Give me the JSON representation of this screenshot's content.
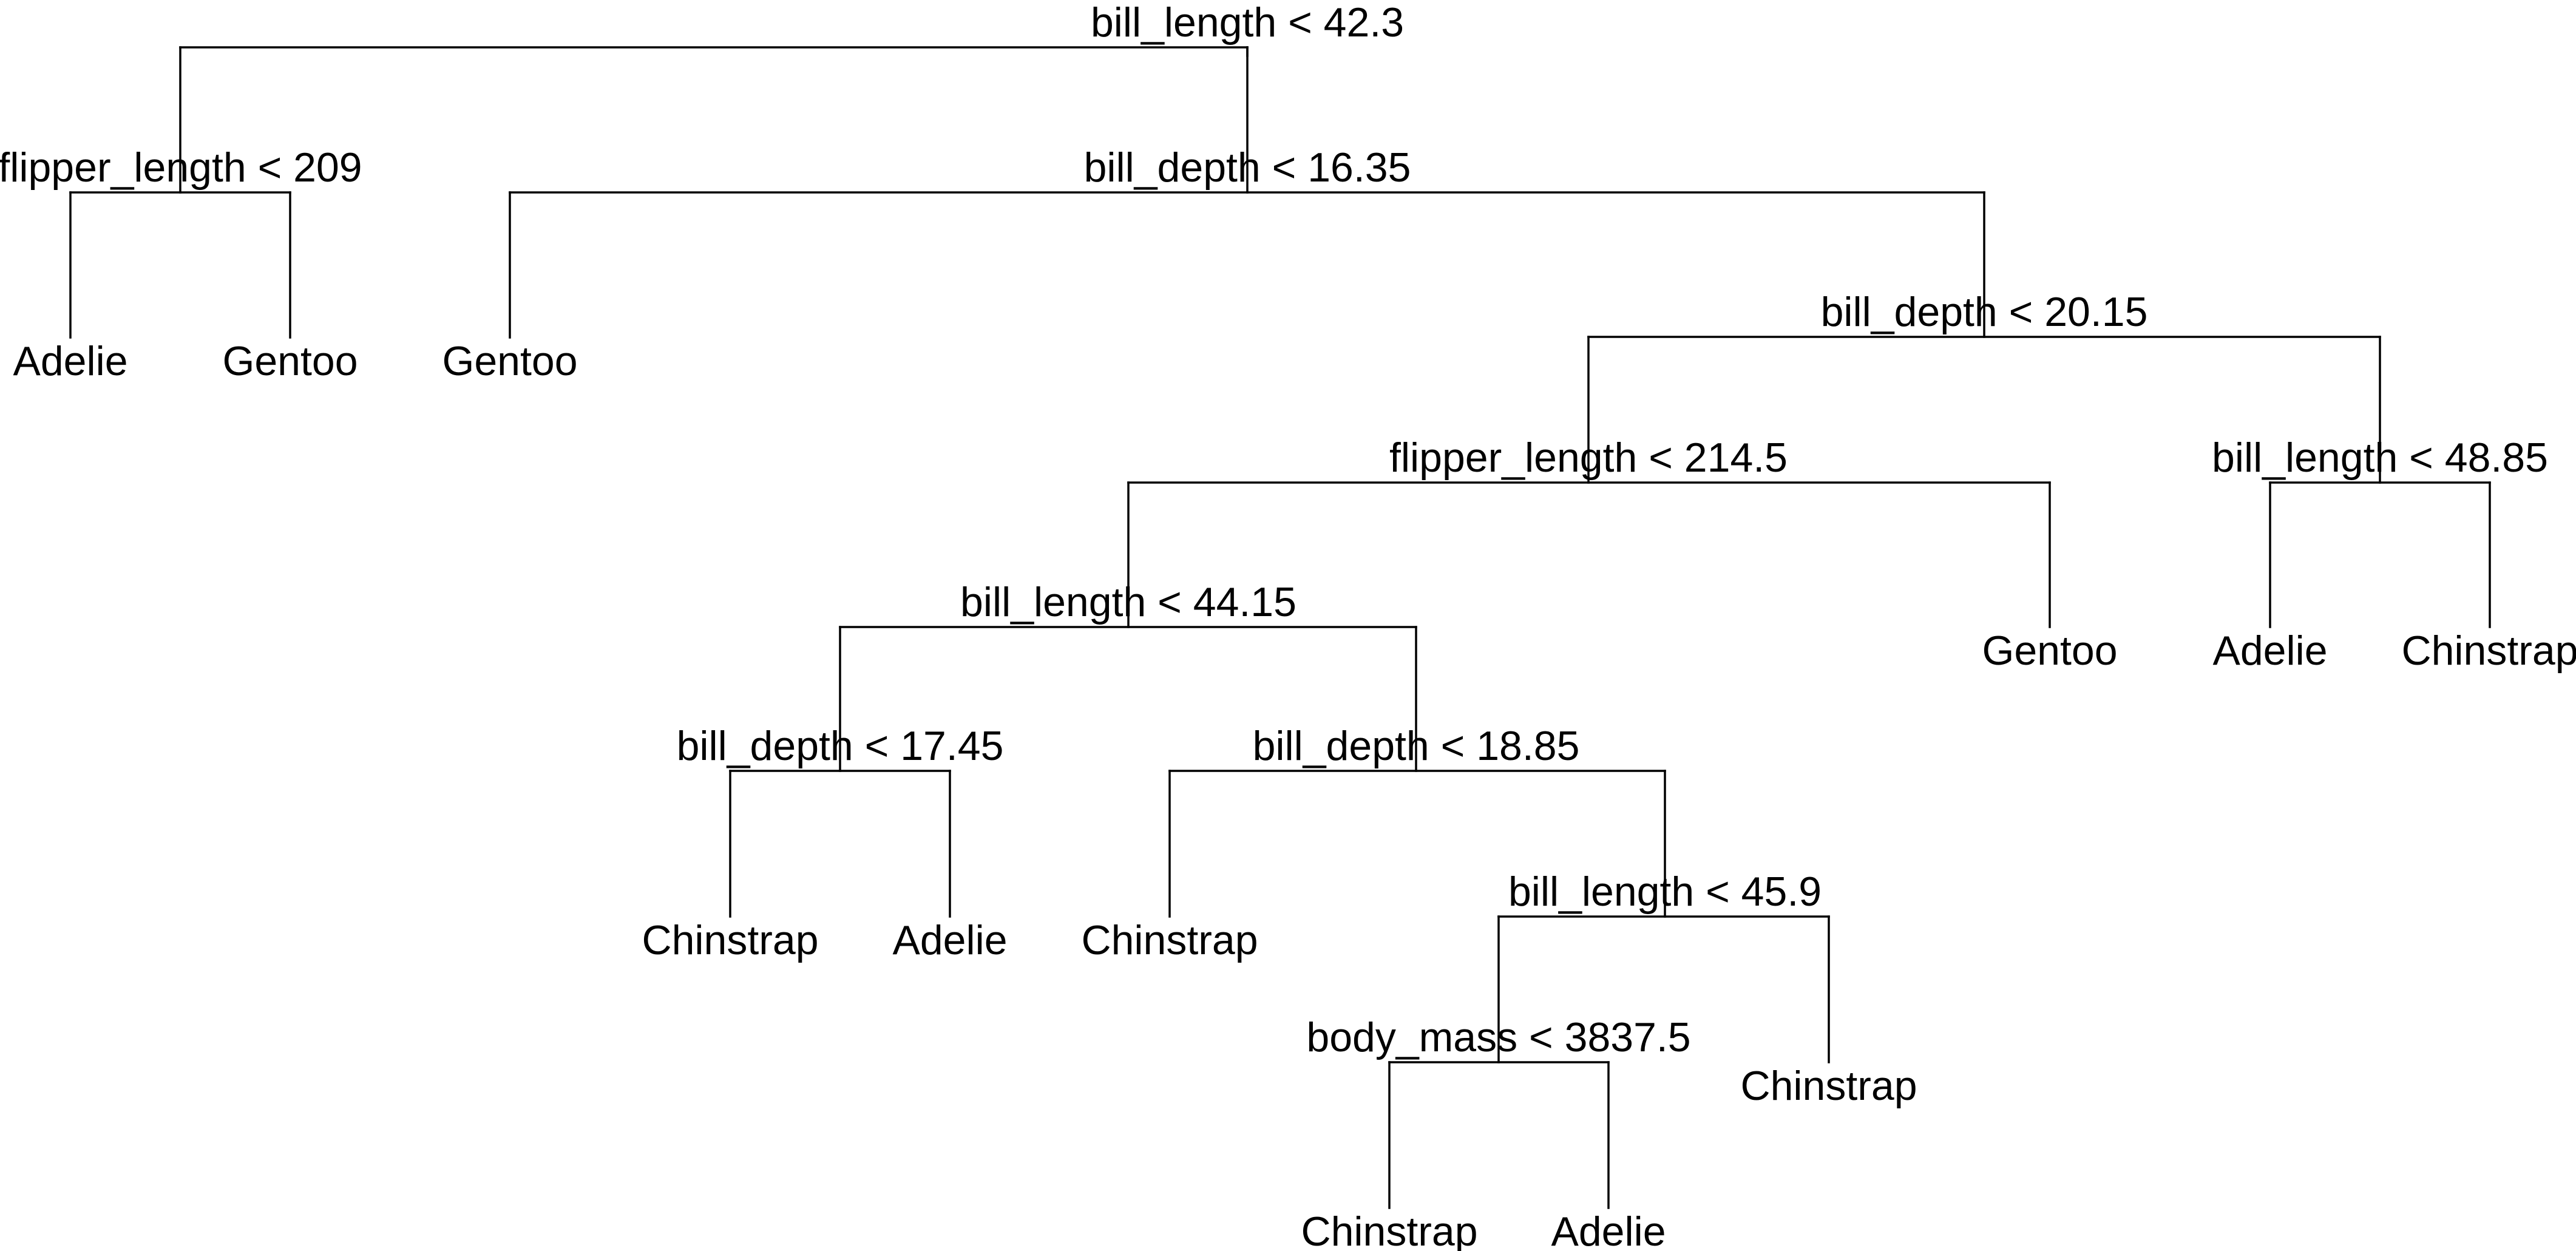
{
  "tree": {
    "line_color": "#000000",
    "nodes": [
      {
        "id": "n1",
        "parent": null,
        "split": "bill_length < 42.3"
      },
      {
        "id": "n2",
        "parent": "n1",
        "split": "flipper_length < 209"
      },
      {
        "id": "n3",
        "parent": "n2",
        "leaf": "Adelie"
      },
      {
        "id": "n4",
        "parent": "n2",
        "leaf": "Gentoo"
      },
      {
        "id": "n5",
        "parent": "n1",
        "split": "bill_depth < 16.35"
      },
      {
        "id": "n6",
        "parent": "n5",
        "leaf": "Gentoo"
      },
      {
        "id": "n7",
        "parent": "n5",
        "split": "bill_depth < 20.15"
      },
      {
        "id": "n8",
        "parent": "n7",
        "split": "flipper_length < 214.5"
      },
      {
        "id": "n9",
        "parent": "n8",
        "split": "bill_length < 44.15"
      },
      {
        "id": "n10",
        "parent": "n9",
        "split": "bill_depth < 17.45"
      },
      {
        "id": "n11",
        "parent": "n10",
        "leaf": "Chinstrap"
      },
      {
        "id": "n12",
        "parent": "n10",
        "leaf": "Adelie"
      },
      {
        "id": "n13",
        "parent": "n9",
        "split": "bill_depth < 18.85"
      },
      {
        "id": "n14",
        "parent": "n13",
        "leaf": "Chinstrap"
      },
      {
        "id": "n15",
        "parent": "n13",
        "split": "bill_length < 45.9"
      },
      {
        "id": "n16",
        "parent": "n15",
        "split": "body_mass < 3837.5"
      },
      {
        "id": "n17",
        "parent": "n16",
        "leaf": "Chinstrap"
      },
      {
        "id": "n18",
        "parent": "n16",
        "leaf": "Adelie"
      },
      {
        "id": "n19",
        "parent": "n15",
        "leaf": "Chinstrap"
      },
      {
        "id": "n20",
        "parent": "n8",
        "leaf": "Gentoo"
      },
      {
        "id": "n21",
        "parent": "n7",
        "split": "bill_length < 48.85"
      },
      {
        "id": "n22",
        "parent": "n21",
        "leaf": "Adelie"
      },
      {
        "id": "n23",
        "parent": "n21",
        "leaf": "Chinstrap"
      }
    ]
  }
}
